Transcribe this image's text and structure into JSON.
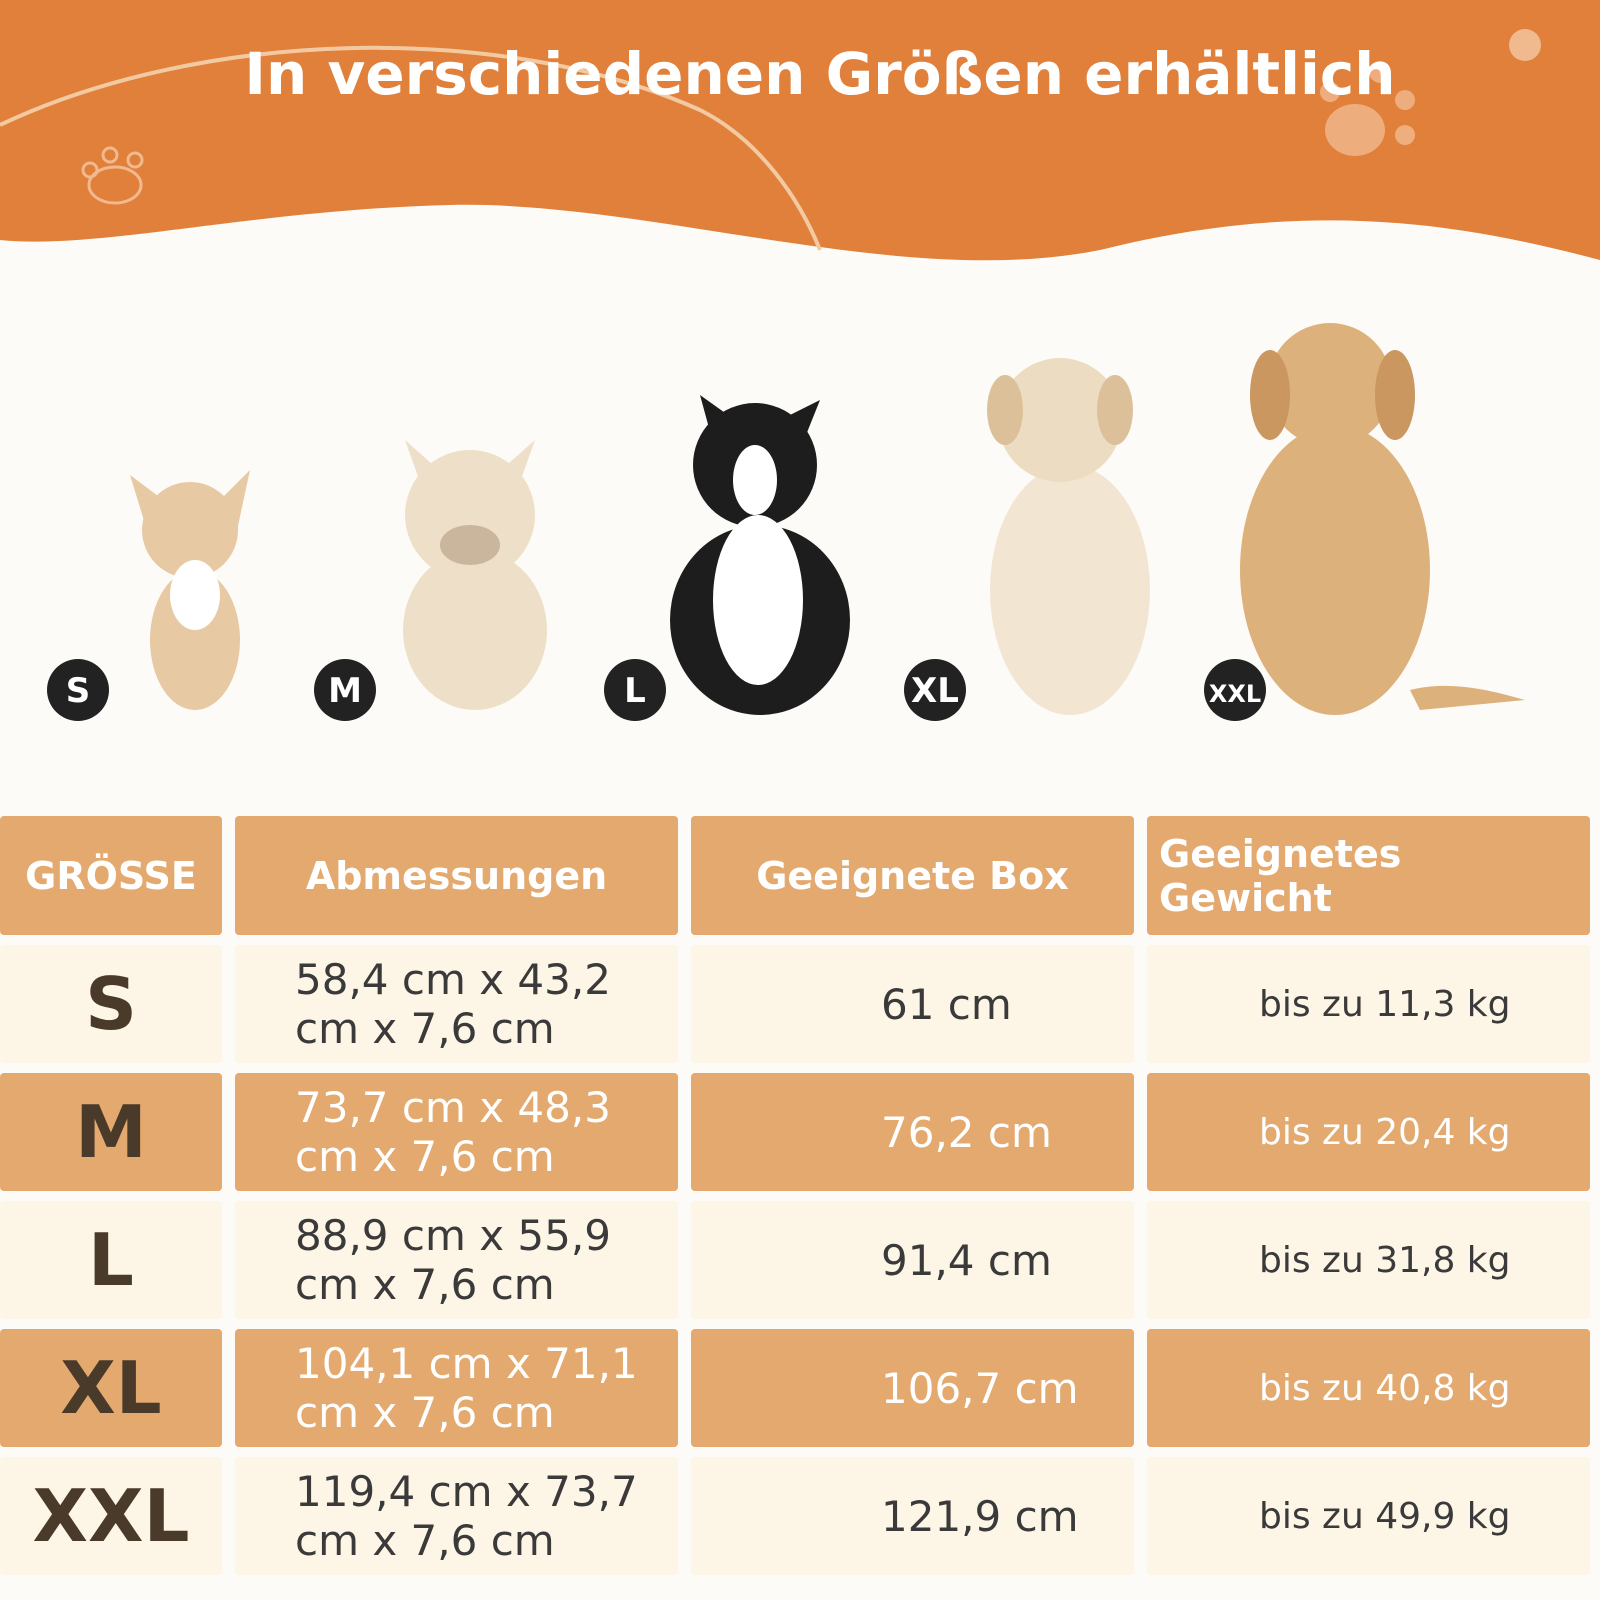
{
  "header": {
    "title": "In verschiedenen Größen erhältlich"
  },
  "sizes": [
    "S",
    "M",
    "L",
    "XL",
    "XXL"
  ],
  "table": {
    "columns": [
      "GRÖSSE",
      "Abmessungen",
      "Geeignete Box",
      "Geeignetes Gewicht"
    ],
    "rows": [
      [
        "S",
        "58,4 cm x 43,2 cm x 7,6 cm",
        "61 cm",
        "bis zu 11,3 kg"
      ],
      [
        "M",
        "73,7 cm x 48,3 cm x 7,6 cm",
        "76,2 cm",
        "bis zu 20,4 kg"
      ],
      [
        "L",
        "88,9 cm x 55,9 cm x 7,6 cm",
        "91,4 cm",
        "bis zu 31,8 kg"
      ],
      [
        "XL",
        "104,1 cm x 71,1 cm x 7,6 cm",
        "106,7 cm",
        "bis zu 40,8 kg"
      ],
      [
        "XXL",
        "119,4 cm x 73,7 cm x 7,6 cm",
        "121,9 cm",
        "bis zu 49,9 kg"
      ]
    ]
  }
}
